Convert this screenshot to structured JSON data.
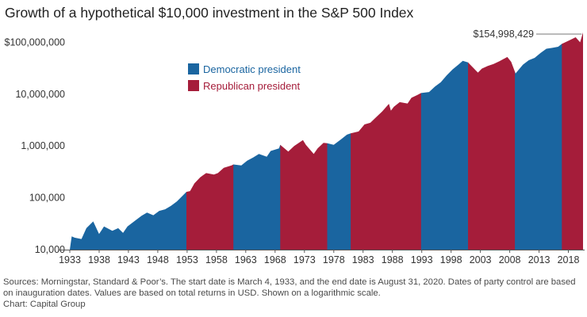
{
  "chart_data": {
    "type": "area",
    "title": "Growth of a hypothetical $10,000 investment in the S&P 500 Index",
    "y_scale": "log",
    "ylim": [
      10000,
      160000000
    ],
    "xlim": [
      "1933-03-04",
      "2020-08-31"
    ],
    "grid": false,
    "legend_placement": "top-left",
    "y_ticks": [
      {
        "value": 10000,
        "label": "10,000"
      },
      {
        "value": 100000,
        "label": "100,000"
      },
      {
        "value": 1000000,
        "label": "1,000,000"
      },
      {
        "value": 10000000,
        "label": "10,000,000"
      },
      {
        "value": 100000000,
        "label": "$100,000,000"
      }
    ],
    "x_ticks": [
      "1933",
      "1938",
      "1943",
      "1948",
      "1953",
      "1958",
      "1963",
      "1968",
      "1973",
      "1978",
      "1983",
      "1988",
      "1993",
      "1998",
      "2003",
      "2008",
      "2013",
      "2018"
    ],
    "legend": [
      {
        "key": "dem",
        "label": "Democratic president",
        "color": "#1a65a0"
      },
      {
        "key": "rep",
        "label": "Republican president",
        "color": "#a51d3a"
      }
    ],
    "periods": [
      {
        "party": "dem",
        "start": "1933-03-04",
        "end": "1953-01-20"
      },
      {
        "party": "rep",
        "start": "1953-01-20",
        "end": "1961-01-20"
      },
      {
        "party": "dem",
        "start": "1961-01-20",
        "end": "1969-01-20"
      },
      {
        "party": "rep",
        "start": "1969-01-20",
        "end": "1977-01-20"
      },
      {
        "party": "dem",
        "start": "1977-01-20",
        "end": "1981-01-20"
      },
      {
        "party": "rep",
        "start": "1981-01-20",
        "end": "1993-01-20"
      },
      {
        "party": "dem",
        "start": "1993-01-20",
        "end": "2001-01-20"
      },
      {
        "party": "rep",
        "start": "2001-01-20",
        "end": "2009-01-20"
      },
      {
        "party": "dem",
        "start": "2009-01-20",
        "end": "2017-01-20"
      },
      {
        "party": "rep",
        "start": "2017-01-20",
        "end": "2020-08-31"
      }
    ],
    "series": [
      {
        "x": [
          "1933-03-04",
          "1933-07-01",
          "1934-01-01",
          "1935-03-01",
          "1936-01-01",
          "1937-03-01",
          "1938-03-01",
          "1939-01-01",
          "1940-06-01",
          "1941-06-01",
          "1942-04-01",
          "1943-01-01",
          "1944-06-01",
          "1945-06-01",
          "1946-05-01",
          "1947-06-01",
          "1948-06-01",
          "1949-06-01",
          "1950-06-01",
          "1951-06-01",
          "1952-06-01",
          "1953-01-20",
          "1953-09-01",
          "1954-06-01",
          "1955-06-01",
          "1956-06-01",
          "1957-10-01",
          "1958-06-01",
          "1959-06-01",
          "1960-10-01",
          "1961-01-20",
          "1962-06-01",
          "1963-06-01",
          "1964-06-01",
          "1965-06-01",
          "1966-10-01",
          "1967-06-01",
          "1968-11-01",
          "1969-01-20",
          "1970-06-01",
          "1971-06-01",
          "1972-12-01",
          "1973-06-01",
          "1974-10-01",
          "1975-06-01",
          "1976-06-01",
          "1977-01-20",
          "1978-03-01",
          "1979-06-01",
          "1980-06-01",
          "1981-01-20",
          "1982-06-01",
          "1983-06-01",
          "1984-06-01",
          "1985-06-01",
          "1986-06-01",
          "1987-08-01",
          "1987-12-01",
          "1988-06-01",
          "1989-06-01",
          "1990-10-01",
          "1991-06-01",
          "1992-06-01",
          "1993-01-20",
          "1994-06-01",
          "1995-06-01",
          "1996-06-01",
          "1997-06-01",
          "1998-06-01",
          "1999-06-01",
          "2000-03-01",
          "2001-01-20",
          "2002-10-01",
          "2003-06-01",
          "2004-06-01",
          "2005-06-01",
          "2006-06-01",
          "2007-10-01",
          "2008-06-01",
          "2009-01-20",
          "2009-03-01",
          "2010-06-01",
          "2011-06-01",
          "2012-06-01",
          "2013-06-01",
          "2014-06-01",
          "2015-06-01",
          "2016-06-01",
          "2017-01-20",
          "2018-06-01",
          "2019-06-01",
          "2020-03-01",
          "2020-08-31"
        ],
        "y": [
          10000,
          18000,
          17000,
          16000,
          26000,
          35000,
          20000,
          28000,
          23000,
          26000,
          21000,
          28000,
          37000,
          45000,
          52000,
          46000,
          56000,
          60000,
          70000,
          85000,
          110000,
          130000,
          135000,
          190000,
          250000,
          300000,
          280000,
          300000,
          380000,
          420000,
          440000,
          420000,
          520000,
          600000,
          700000,
          620000,
          800000,
          900000,
          1050000,
          780000,
          1000000,
          1300000,
          1050000,
          700000,
          900000,
          1150000,
          1130000,
          1050000,
          1350000,
          1650000,
          1750000,
          1900000,
          2600000,
          2800000,
          3600000,
          4600000,
          6500000,
          4800000,
          5700000,
          7000000,
          6600000,
          8500000,
          9600000,
          10500000,
          11000000,
          14000000,
          17000000,
          23000000,
          30000000,
          37000000,
          44000000,
          41000000,
          26000000,
          31000000,
          35000000,
          38000000,
          43000000,
          52000000,
          42000000,
          27000000,
          25000000,
          37000000,
          45000000,
          50000000,
          62000000,
          75000000,
          78000000,
          82000000,
          93000000,
          110000000,
          125000000,
          100000000,
          154998429
        ]
      }
    ],
    "annotations": [
      {
        "x": "2020-08-31",
        "y": 154998429,
        "label": "$154,998,429"
      }
    ],
    "footnote": {
      "sources": "Sources: Morningstar, Standard & Poor’s. The start date is March 4, 1933, and the end date is August 31, 2020. Dates of party control are based on inauguration dates. Values are based on total returns in USD. Shown on a logarithmic scale.",
      "credit": "Chart: Capital Group"
    }
  }
}
